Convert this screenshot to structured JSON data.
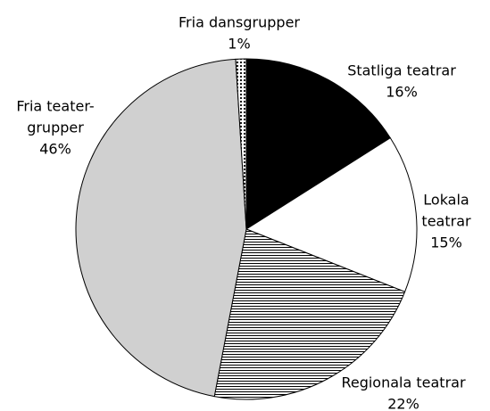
{
  "chart_data": {
    "type": "pie",
    "categories": [
      [
        "Statliga teatrar"
      ],
      [
        "Lokala",
        "teatrar"
      ],
      [
        "Regionala teatrar"
      ],
      [
        "Fria teater-",
        "grupper"
      ],
      [
        "Fria dansgrupper"
      ]
    ],
    "values": [
      16,
      15,
      22,
      46,
      1
    ],
    "value_labels": [
      "16%",
      "15%",
      "22%",
      "46%",
      "1%"
    ],
    "fills": [
      "solid-black",
      "white",
      "horizontal-hatch",
      "light-gray",
      "dots"
    ]
  }
}
